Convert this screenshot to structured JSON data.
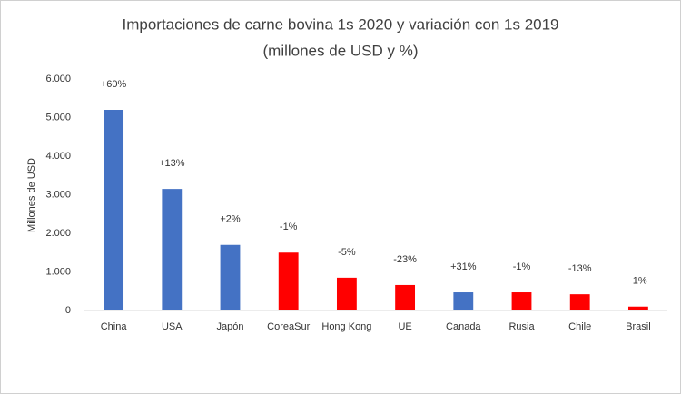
{
  "chart_data": {
    "type": "bar",
    "title": [
      "Importaciones de carne bovina 1s 2020  y variación con 1s 2019",
      "(millones de USD y %)"
    ],
    "y_label": "Millones de USD",
    "categories": [
      "China",
      "USA",
      "Japón",
      "CoreaSur",
      "Hong Kong",
      "UE",
      "Canada",
      "Rusia",
      "Chile",
      "Brasil"
    ],
    "values": [
      5200,
      3150,
      1700,
      1500,
      850,
      660,
      470,
      470,
      420,
      100
    ],
    "colors": [
      "#4472c4",
      "#4472c4",
      "#4472c4",
      "#ff0000",
      "#ff0000",
      "#ff0000",
      "#4472c4",
      "#ff0000",
      "#ff0000",
      "#ff0000"
    ],
    "variation_labels": [
      "+60%",
      "+13%",
      "+2%",
      "-1%",
      "-5%",
      "-23%",
      "+31%",
      "-1%",
      "-13%",
      "-1%"
    ],
    "ylim": [
      0,
      6000
    ],
    "yticks": [
      0,
      {
        "value": 1000,
        "label": "1.000"
      },
      {
        "value": 2000,
        "label": "2.000"
      },
      {
        "value": 3000,
        "label": "3.000"
      },
      {
        "value": 4000,
        "label": "4.000"
      },
      {
        "value": 5000,
        "label": "5.000"
      },
      {
        "value": 6000,
        "label": "6.000"
      }
    ],
    "grid": false
  }
}
